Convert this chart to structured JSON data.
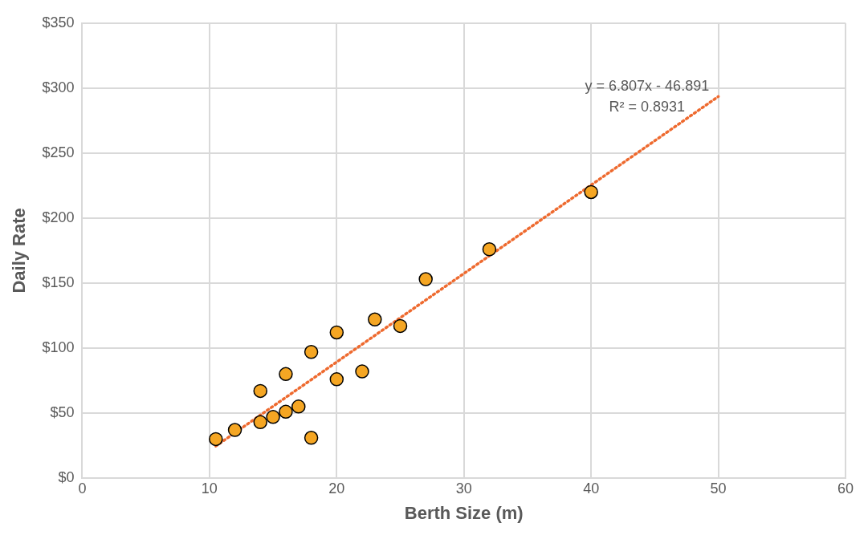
{
  "chart_data": {
    "type": "scatter",
    "xlabel": "Berth Size (m)",
    "ylabel": "Daily Rate",
    "xlim": [
      0,
      60
    ],
    "xticks": [
      0,
      10,
      20,
      30,
      40,
      50,
      60
    ],
    "ylim": [
      0,
      350
    ],
    "yticks": [
      {
        "value": 0,
        "label": "$0"
      },
      {
        "value": 50,
        "label": "$50"
      },
      {
        "value": 100,
        "label": "$100"
      },
      {
        "value": 150,
        "label": "$150"
      },
      {
        "value": 200,
        "label": "$200"
      },
      {
        "value": 250,
        "label": "$250"
      },
      {
        "value": 300,
        "label": "$300"
      },
      {
        "value": 350,
        "label": "$350"
      }
    ],
    "grid": true,
    "legend": false,
    "annotations": [
      "y = 6.807x - 46.891",
      "R² = 0.8931"
    ],
    "series": [
      {
        "color": "#f5a623",
        "marker": "circle",
        "x": [
          10.5,
          12,
          14,
          14,
          15,
          16,
          16,
          17,
          18,
          18,
          20,
          20,
          22,
          23,
          25,
          27,
          32,
          40
        ],
        "values": [
          30,
          37,
          43,
          67,
          47,
          51,
          80,
          55,
          31,
          97,
          76,
          112,
          82,
          122,
          117,
          153,
          176,
          220
        ]
      },
      {
        "type": "line",
        "color": "#ee6a2f",
        "marker": "none",
        "line_style": "dotted",
        "x": [
          10.5,
          50
        ],
        "values": [
          24.6,
          293.5
        ]
      }
    ]
  }
}
